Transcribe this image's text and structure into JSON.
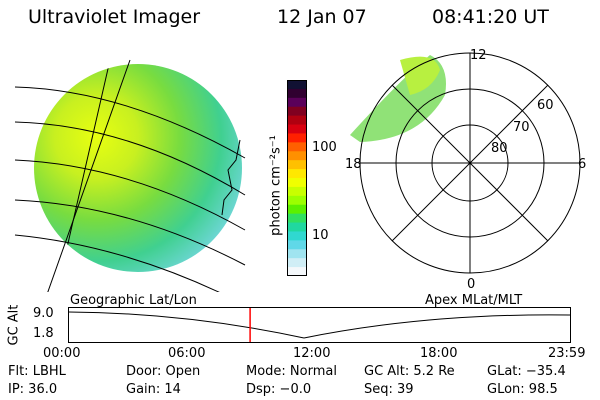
{
  "header": {
    "instrument": "Ultraviolet Imager",
    "date": "12 Jan 07",
    "time": "08:41:20 UT"
  },
  "colorbar": {
    "unit_label": "photon cm⁻²s⁻¹",
    "ticks": [
      "100",
      "10"
    ],
    "colors": [
      "#111133",
      "#300030",
      "#5a005a",
      "#800020",
      "#b00010",
      "#d80010",
      "#ff2000",
      "#ff6000",
      "#ff9000",
      "#ffc000",
      "#ffe800",
      "#f0ff00",
      "#c8ff00",
      "#9cff00",
      "#5cf000",
      "#30e060",
      "#20d8a0",
      "#30d8d0",
      "#60d8e8",
      "#a0e4f0",
      "#d0eef6",
      "#f4f8fb"
    ],
    "accent": "#ff9900"
  },
  "geo_panel": {
    "caption": "Geographic Lat/Lon"
  },
  "polar_panel": {
    "caption": "Apex MLat/MLT",
    "mlt_labels": {
      "top": "12",
      "left": "18",
      "right": "6",
      "bottom": "0"
    },
    "lat_labels": [
      "60",
      "70",
      "80"
    ]
  },
  "altitude_plot": {
    "ylabel": "GC Alt",
    "yticks": [
      "9.0",
      "1.8"
    ],
    "xticks": [
      "00:00",
      "06:00",
      "12:00",
      "18:00",
      "23:59"
    ],
    "marker_color": "#ff0000",
    "current_time_fraction": 0.362
  },
  "footer": {
    "filter": "Flt: LBHL",
    "door": "Door: Open",
    "mode": "Mode: Normal",
    "gc_alt": "GC Alt: 5.2 Re",
    "glat": "GLat: −35.4",
    "ip": "IP: 36.0",
    "gain": "Gain: 14",
    "dsp": "Dsp:   −0.0",
    "seq": "Seq: 39",
    "glon": "GLon: 98.5"
  }
}
